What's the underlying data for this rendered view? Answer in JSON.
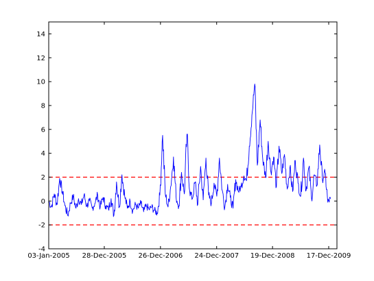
{
  "chart_data": {
    "type": "line",
    "title": "",
    "xlabel": "",
    "ylabel": "",
    "grid": false,
    "ylim": [
      -4,
      15
    ],
    "xlim": [
      "2005-01-03",
      "2009-12-17"
    ],
    "yticks": [
      -4,
      -2,
      0,
      2,
      4,
      6,
      8,
      10,
      12,
      14
    ],
    "xticks": [
      {
        "date": "2005-01-03",
        "label": "03-Jan-2005"
      },
      {
        "date": "2005-12-28",
        "label": "28-Dec-2005"
      },
      {
        "date": "2006-12-26",
        "label": "26-Dec-2006"
      },
      {
        "date": "2007-12-24",
        "label": "24-Dec-2007"
      },
      {
        "date": "2008-12-19",
        "label": "19-Dec-2008"
      },
      {
        "date": "2009-12-17",
        "label": "17-Dec-2009"
      }
    ],
    "reference_lines": [
      {
        "y": 2,
        "style": "dashed",
        "color": "#ff0000"
      },
      {
        "y": -2,
        "style": "dashed",
        "color": "#ff0000"
      }
    ],
    "series": [
      {
        "color": "#0000ff",
        "x": [
          "2005-01-03",
          "2005-01-20",
          "2005-02-08",
          "2005-02-25",
          "2005-03-15",
          "2005-04-01",
          "2005-04-18",
          "2005-05-06",
          "2005-05-24",
          "2005-06-10",
          "2005-06-28",
          "2005-07-15",
          "2005-08-02",
          "2005-08-19",
          "2005-09-06",
          "2005-09-23",
          "2005-10-11",
          "2005-10-28",
          "2005-11-15",
          "2005-12-02",
          "2005-12-20",
          "2006-01-06",
          "2006-01-24",
          "2006-02-10",
          "2006-02-28",
          "2006-03-17",
          "2006-04-04",
          "2006-04-21",
          "2006-05-09",
          "2006-05-26",
          "2006-06-13",
          "2006-06-30",
          "2006-07-18",
          "2006-08-04",
          "2006-08-22",
          "2006-09-08",
          "2006-09-26",
          "2006-10-13",
          "2006-10-31",
          "2006-11-17",
          "2006-12-05",
          "2006-12-22",
          "2007-01-09",
          "2007-01-26",
          "2007-02-13",
          "2007-03-02",
          "2007-03-20",
          "2007-04-06",
          "2007-04-24",
          "2007-05-11",
          "2007-05-29",
          "2007-06-15",
          "2007-07-03",
          "2007-07-20",
          "2007-08-07",
          "2007-08-24",
          "2007-09-11",
          "2007-09-28",
          "2007-10-16",
          "2007-11-02",
          "2007-11-20",
          "2007-12-07",
          "2007-12-25",
          "2008-01-11",
          "2008-01-29",
          "2008-02-15",
          "2008-03-04",
          "2008-03-21",
          "2008-04-08",
          "2008-04-25",
          "2008-05-13",
          "2008-05-30",
          "2008-06-17",
          "2008-07-04",
          "2008-07-22",
          "2008-08-08",
          "2008-08-26",
          "2008-09-12",
          "2008-09-30",
          "2008-10-17",
          "2008-11-04",
          "2008-11-21",
          "2008-12-09",
          "2008-12-26",
          "2009-01-13",
          "2009-01-30",
          "2009-02-17",
          "2009-03-06",
          "2009-03-24",
          "2009-04-10",
          "2009-04-28",
          "2009-05-15",
          "2009-06-02",
          "2009-06-19",
          "2009-07-07",
          "2009-07-24",
          "2009-08-11",
          "2009-08-28",
          "2009-09-15",
          "2009-10-02",
          "2009-10-20",
          "2009-11-06",
          "2009-11-24",
          "2009-12-11",
          "2009-12-29"
        ],
        "values": [
          0.0,
          -0.5,
          0.6,
          -0.3,
          1.9,
          0.8,
          -0.4,
          -1.2,
          -0.2,
          0.4,
          -0.6,
          0.2,
          -0.3,
          0.5,
          -0.4,
          0.0,
          -0.6,
          -0.2,
          0.5,
          -0.5,
          0.3,
          -0.4,
          -0.7,
          0.2,
          -1.2,
          1.6,
          -0.5,
          2.2,
          0.4,
          -0.6,
          0.0,
          -0.8,
          -0.3,
          -0.6,
          -0.2,
          -0.9,
          -0.4,
          -0.7,
          -0.5,
          -0.8,
          -1.0,
          0.5,
          5.5,
          0.6,
          -0.5,
          1.2,
          3.7,
          0.3,
          -0.4,
          2.4,
          0.6,
          5.6,
          0.8,
          0.2,
          1.6,
          -0.3,
          2.9,
          0.1,
          3.6,
          0.5,
          -0.2,
          1.5,
          0.4,
          3.6,
          0.9,
          -0.5,
          1.4,
          0.3,
          -0.6,
          1.8,
          0.8,
          1.2,
          2.1,
          1.7,
          4.6,
          7.2,
          9.8,
          3.0,
          6.8,
          3.5,
          2.0,
          5.0,
          2.4,
          3.7,
          1.2,
          4.6,
          2.3,
          3.9,
          1.0,
          2.8,
          0.8,
          3.4,
          1.5,
          0.4,
          3.6,
          0.9,
          2.8,
          0.2,
          2.2,
          1.3,
          4.7,
          1.8,
          2.4,
          -0.1,
          0.2
        ]
      }
    ]
  }
}
